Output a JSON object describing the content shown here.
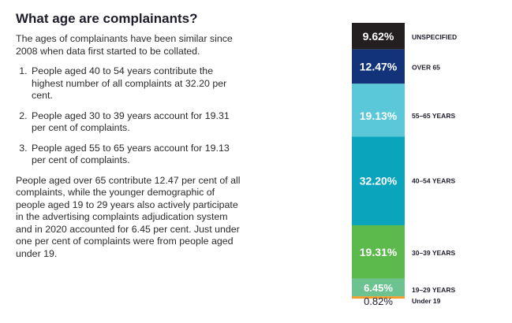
{
  "title": "What age are complainants?",
  "intro": "The ages of complainants have been similar since 2008 when data first started to be collated.",
  "points": [
    "People aged 40 to 54 years contribute the highest number of all complaints at 32.20 per cent.",
    "People aged 30 to 39 years account for 19.31 per cent of complaints.",
    "People aged 55 to 65 years account for 19.13 per cent of complaints."
  ],
  "closing": "People aged over 65 contribute 12.47 per cent of all complaints, while the younger demographic of people aged 19 to 29 years also actively participate in the advertising complaints adjudication system and in 2020 accounted for 6.45 per cent. Just under one per cent of complaints were from people aged under 19.",
  "chart_data": {
    "type": "bar",
    "stacked": true,
    "ylim": [
      0,
      100
    ],
    "segments": [
      {
        "category": "UNSPECIFIED",
        "value": 9.62,
        "label": "9.62%",
        "color": "#231f20"
      },
      {
        "category": "OVER 65",
        "value": 12.47,
        "label": "12.47%",
        "color": "#12337a"
      },
      {
        "category": "55–65 YEARS",
        "value": 19.13,
        "label": "19.13%",
        "color": "#5bc8da"
      },
      {
        "category": "40–54 YEARS",
        "value": 32.2,
        "label": "32.20%",
        "color": "#0aa5bd"
      },
      {
        "category": "30–39 YEARS",
        "value": 19.31,
        "label": "19.31%",
        "color": "#5bba4b"
      },
      {
        "category": "19–29 YEARS",
        "value": 6.45,
        "label": "6.45%",
        "color": "#6cc38f"
      },
      {
        "category": "Under 19",
        "value": 0.82,
        "label": "0.82%",
        "color": "#f39c2b"
      }
    ]
  }
}
